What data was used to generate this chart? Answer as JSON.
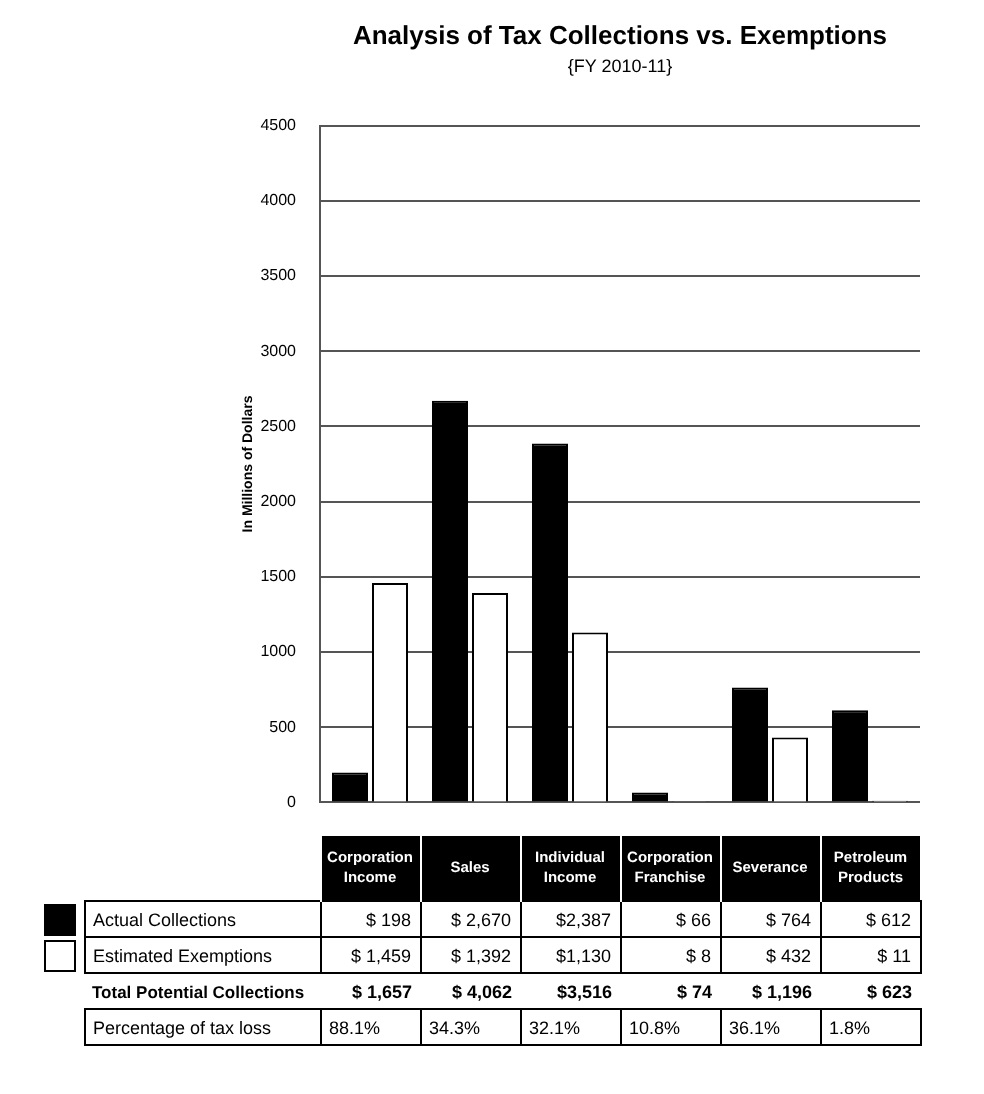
{
  "chart_data": {
    "type": "bar",
    "title": "Analysis of Tax Collections vs. Exemptions",
    "subtitle": "{FY 2010-11}",
    "ylabel": "In Millions of Dollars",
    "categories": [
      "Corporation Income",
      "Sales",
      "Individual Income",
      "Corporation Franchise",
      "Severance",
      "Petroleum Products"
    ],
    "series": [
      {
        "name": "Actual Collections",
        "color": "#000000",
        "values": [
          198,
          2670,
          2387,
          66,
          764,
          612
        ],
        "value_labels": [
          "$ 198",
          "$ 2,670",
          "$2,387",
          "$ 66",
          "$ 764",
          "$ 612"
        ]
      },
      {
        "name": "Estimated Exemptions",
        "color": "#ffffff",
        "values": [
          1459,
          1392,
          1130,
          8,
          432,
          11
        ],
        "value_labels": [
          "$ 1,459",
          "$ 1,392",
          "$1,130",
          "$ 8",
          "$ 432",
          "$ 11"
        ]
      }
    ],
    "annotations": [
      "Total Potential Collections",
      "$ 1,657",
      "$ 4,062",
      "$3,516",
      "$ 74",
      "$ 1,196",
      "$ 623",
      "Percentage of tax loss",
      "88.1%",
      "34.3%",
      "32.1%",
      "10.8%",
      "36.1%",
      "1.8%"
    ],
    "ylim": [
      0,
      4500
    ],
    "yticks": [
      0,
      500,
      1000,
      1500,
      2000,
      2500,
      3000,
      3500,
      4000,
      4500
    ],
    "grid": "y",
    "legend": "bottom"
  }
}
